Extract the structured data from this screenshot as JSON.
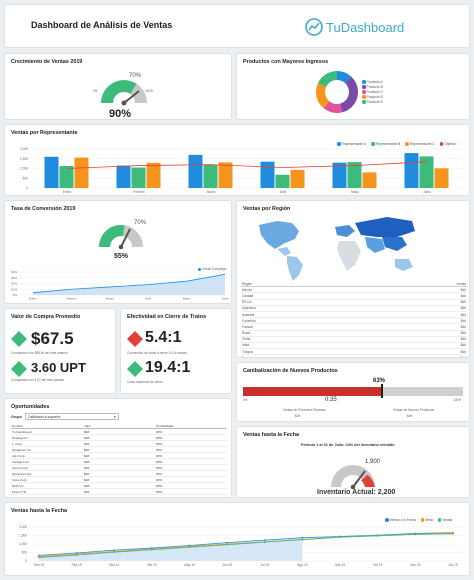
{
  "header": {
    "title": "Dashboard de Análisis de Ventas",
    "brand": "TuDashboard",
    "brand_color": "#3fa9c9"
  },
  "colors": {
    "blue": "#1f8ce0",
    "green": "#3dbb7b",
    "orange": "#f7941d",
    "red": "#e0403a",
    "gray": "#c8c8c8",
    "purple": "#7b4aa8",
    "pink": "#e0529c"
  },
  "crec": {
    "title": "Crecimiento de Ventas 2019",
    "target_label": "70%",
    "value_label": "90%",
    "min_label": "0%",
    "max_label": "110%"
  },
  "prod": {
    "title": "Productos con Mayores Ingresos",
    "legend": [
      "Producto A",
      "Producto B",
      "Producto C",
      "Producto D",
      "Producto E"
    ],
    "chart_data": {
      "type": "pie",
      "labels": [
        "Producto A",
        "Producto B",
        "Producto C",
        "Producto D",
        "Producto E"
      ],
      "values": [
        12,
        34,
        15,
        21,
        18
      ]
    }
  },
  "rep": {
    "title": "Ventas por Representante",
    "legend": [
      "Representante A",
      "Representante B",
      "Representante C",
      "Objetivo"
    ],
    "chart_data": {
      "type": "bar",
      "categories": [
        "Enero",
        "Febrero",
        "Marzo",
        "Abril",
        "Mayo",
        "Junio"
      ],
      "series": [
        {
          "name": "Representante A",
          "values": [
            1600,
            1150,
            1700,
            1350,
            1300,
            1790
          ]
        },
        {
          "name": "Representante B",
          "values": [
            1130,
            1050,
            1180,
            680,
            1330,
            1620
          ]
        },
        {
          "name": "Representante C",
          "values": [
            1560,
            1290,
            1310,
            930,
            800,
            1010
          ]
        },
        {
          "name": "Objetivo",
          "values": [
            1000,
            1150,
            1200,
            1050,
            1150,
            1350
          ]
        }
      ],
      "yticks": [
        "2,000",
        "1,500",
        "1,000",
        "500",
        "0"
      ],
      "ylim": [
        0,
        2000
      ]
    }
  },
  "conv": {
    "title": "Tasa de Conversión 2019",
    "target_label": "70%",
    "value_label": "55%",
    "legend": "Virtual Campaign",
    "chart_data": {
      "type": "area",
      "categories": [
        "Enero",
        "Febrero",
        "Marzo",
        "Abril",
        "Mayo",
        "Junio"
      ],
      "values": [
        4,
        10,
        14,
        18,
        24,
        36
      ],
      "yticks": [
        "40%",
        "30%",
        "20%",
        "10%",
        "0%"
      ],
      "ylim": [
        0,
        40
      ]
    }
  },
  "region": {
    "title": "Ventas por Región",
    "col1": "Región",
    "col2": "Ventas",
    "rows": [
      [
        "México",
        "$##"
      ],
      [
        "Canadá",
        "$##"
      ],
      [
        "EE.UU.",
        "$##"
      ],
      [
        "Argentina",
        "$##"
      ],
      [
        "Australia",
        "$##"
      ],
      [
        "Colombia",
        "$##"
      ],
      [
        "Francia",
        "$##"
      ],
      [
        "Rusia",
        "$##"
      ],
      [
        "China",
        "$##"
      ],
      [
        "India",
        "$##"
      ],
      [
        "Turquía",
        "$##"
      ],
      [
        "Europa",
        "$##"
      ]
    ]
  },
  "valor": {
    "title": "Valor de Compra Promedio",
    "v1": "$67.5",
    "s1": "Comparado con $55.4k del mes anterior",
    "v2": "3.60 UPT",
    "s2": "Comparado con 4.07 del mes pasado"
  },
  "efec": {
    "title": "Efectividad en Cierre de Tratos",
    "v1": "5.4:1",
    "s1": "Conversión de leads a cierre: 5.4 a meses",
    "v2": "19.4:1",
    "s2": "Costo esperado de cierre"
  },
  "canib": {
    "title": "Canibalización de Nuevos Productos",
    "pct_label": "63%",
    "value_label": "0.35",
    "fraction": 0.63,
    "axis_left": "0%",
    "axis_right": "100%",
    "foot1_label": "Ventas de Productos Pasados",
    "foot1_value": "$##",
    "foot2_label": "Ventas de Nuevos Productos",
    "foot2_value": "$##"
  },
  "opp": {
    "title": "Oportunidades",
    "filter_label": "Grupo",
    "filter_value": "Calificado a superior",
    "columns": [
      "Nombre",
      "Valor",
      "Probabilidad"
    ],
    "rows": [
      [
        "Tu Dashboard",
        "$##",
        "##%"
      ],
      [
        "Strategi Inc",
        "$##",
        "##%"
      ],
      [
        "L. Corp",
        "$##",
        "##%"
      ],
      [
        "Quigames Inc",
        "$##",
        "##%"
      ],
      [
        "Allo Corp",
        "$##",
        "##%"
      ],
      [
        "Ventajo LLC",
        "$##",
        "##%"
      ],
      [
        "Jonno Corp",
        "$##",
        "##%"
      ],
      [
        "Stoneshot Ltd",
        "$##",
        "##%"
      ],
      [
        "Inora Corp",
        "$##",
        "##%"
      ],
      [
        "RNC Inc",
        "$##",
        "##%"
      ],
      [
        "Finnc LTD",
        "$##",
        "##%"
      ]
    ],
    "total_value": "$###,###",
    "total_prob": "##%"
  },
  "vfecha": {
    "title": "Ventas hasta la Fecha",
    "subtitle": "Periodo 1 al 31 de Julio: 24% del inventario vendido",
    "gauge_max": "1,900",
    "gauge_value_label": "Inventario Actual: 2,200"
  },
  "vline": {
    "title": "Ventas hasta la Fecha",
    "legend": [
      "Ventas a la Fecha",
      "Meta",
      "Ventas"
    ],
    "chart_data": {
      "type": "line",
      "categories": [
        "Ene 19",
        "Feb 19",
        "Mar 19",
        "Abr 19",
        "May 19",
        "Jun 19",
        "Jul 19",
        "Ago 19",
        "Sep 19",
        "Oct 19",
        "Nov 19",
        "Dic 19"
      ],
      "series": [
        {
          "name": "Ventas a la Fecha",
          "values": [
            330,
            470,
            640,
            760,
            910,
            1080,
            1230,
            1370,
            1440,
            1520,
            1620,
            1670
          ]
        },
        {
          "name": "Meta",
          "values": [
            260,
            410,
            560,
            700,
            850,
            1000,
            1120,
            1270,
            1410,
            1490,
            1580,
            1650
          ]
        },
        {
          "name": "Ventas",
          "values": [
            210,
            350,
            520,
            660,
            810,
            960,
            1110,
            1250,
            1400,
            1480,
            1560,
            1600
          ]
        }
      ],
      "yticks": [
        "2,000",
        "1,500",
        "1,000",
        "500",
        "0"
      ],
      "ylim": [
        0,
        2000
      ]
    }
  }
}
